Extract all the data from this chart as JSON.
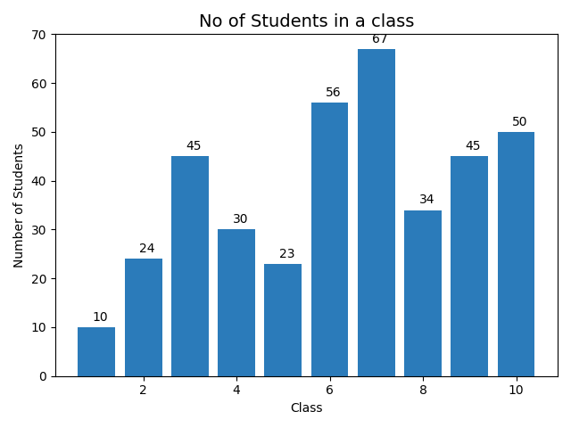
{
  "classes": [
    1,
    2,
    3,
    4,
    5,
    6,
    7,
    8,
    9,
    10
  ],
  "students": [
    10,
    24,
    45,
    30,
    23,
    56,
    67,
    34,
    45,
    50
  ],
  "bar_color": "#2b7bba",
  "title": "No of Students in a class",
  "xlabel": "Class",
  "ylabel": "Number of Students",
  "ylim": [
    0,
    70
  ],
  "xticks": [
    2,
    4,
    6,
    8,
    10
  ],
  "title_fontsize": 14,
  "label_fontsize": 10,
  "annotation_fontsize": 10
}
